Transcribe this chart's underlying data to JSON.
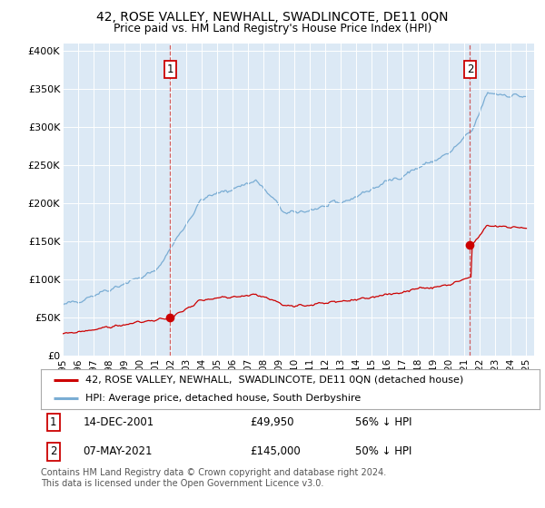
{
  "title1": "42, ROSE VALLEY, NEWHALL, SWADLINCOTE, DE11 0QN",
  "title2": "Price paid vs. HM Land Registry's House Price Index (HPI)",
  "fig_bg_color": "#ffffff",
  "plot_bg_color": "#dce9f5",
  "red_line_color": "#cc0000",
  "blue_line_color": "#7aadd4",
  "sale1_date_num": 2001.95,
  "sale1_price": 49950,
  "sale1_label": "1",
  "sale2_date_num": 2021.35,
  "sale2_price": 145000,
  "sale2_label": "2",
  "xmin": 1995.0,
  "xmax": 2025.5,
  "ymin": 0,
  "ymax": 410000,
  "yticks": [
    0,
    50000,
    100000,
    150000,
    200000,
    250000,
    300000,
    350000,
    400000
  ],
  "ytick_labels": [
    "£0",
    "£50K",
    "£100K",
    "£150K",
    "£200K",
    "£250K",
    "£300K",
    "£350K",
    "£400K"
  ],
  "xticks": [
    1995,
    1996,
    1997,
    1998,
    1999,
    2000,
    2001,
    2002,
    2003,
    2004,
    2005,
    2006,
    2007,
    2008,
    2009,
    2010,
    2011,
    2012,
    2013,
    2014,
    2015,
    2016,
    2017,
    2018,
    2019,
    2020,
    2021,
    2022,
    2023,
    2024,
    2025
  ],
  "legend_line1": "42, ROSE VALLEY, NEWHALL,  SWADLINCOTE, DE11 0QN (detached house)",
  "legend_line2": "HPI: Average price, detached house, South Derbyshire",
  "annotation1_box": "1",
  "annotation1_date": "14-DEC-2001",
  "annotation1_price": "£49,950",
  "annotation1_pct": "56% ↓ HPI",
  "annotation2_box": "2",
  "annotation2_date": "07-MAY-2021",
  "annotation2_price": "£145,000",
  "annotation2_pct": "50% ↓ HPI",
  "footer": "Contains HM Land Registry data © Crown copyright and database right 2024.\nThis data is licensed under the Open Government Licence v3.0."
}
